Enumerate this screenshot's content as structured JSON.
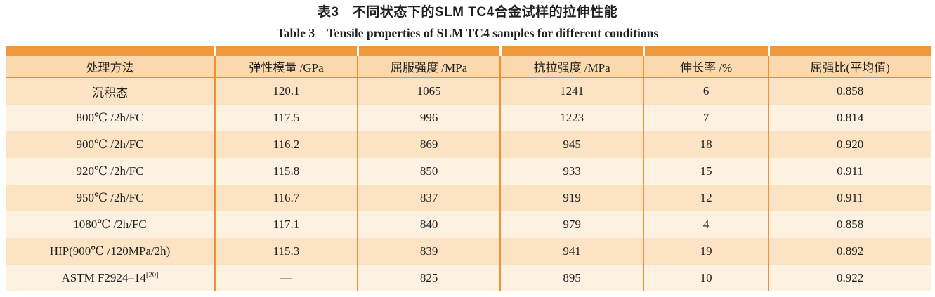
{
  "titles": {
    "chinese": "表3　不同状态下的SLM TC4合金试样的拉伸性能",
    "english": "Table 3　Tensile properties of SLM TC4 samples for different conditions"
  },
  "colors": {
    "accent_bar": "#F0993C",
    "column_separator": "#EF9235",
    "header_bg": "#FAD9AE",
    "header_underline": "#DC8E43",
    "row_odd_bg": "#FBE3C3",
    "row_even_bg": "#FDF1E1",
    "text": "#1F1F1F",
    "page_bg": "#FFFFFF"
  },
  "astm_label": {
    "base": "ASTM F2924–14",
    "sup": "[20]"
  },
  "chart_data": {
    "type": "table",
    "title": "表3 不同状态下的SLM TC4合金试样的拉伸性能 / Table 3 Tensile properties of SLM TC4 samples for different conditions",
    "columns": [
      "处理方法",
      "弹性模量 /GPa",
      "屈服强度 /MPa",
      "抗拉强度 /MPa",
      "伸长率 /%",
      "屈强比(平均值)"
    ],
    "rows": [
      [
        "沉积态",
        "120.1",
        "1065",
        "1241",
        "6",
        "0.858"
      ],
      [
        "800℃ /2h/FC",
        "117.5",
        "996",
        "1223",
        "7",
        "0.814"
      ],
      [
        "900℃ /2h/FC",
        "116.2",
        "869",
        "945",
        "18",
        "0.920"
      ],
      [
        "920℃ /2h/FC",
        "115.8",
        "850",
        "933",
        "15",
        "0.911"
      ],
      [
        "950℃ /2h/FC",
        "116.7",
        "837",
        "919",
        "12",
        "0.911"
      ],
      [
        "1080℃ /2h/FC",
        "117.1",
        "840",
        "979",
        "4",
        "0.858"
      ],
      [
        "HIP(900℃ /120MPa/2h)",
        "115.3",
        "839",
        "941",
        "19",
        "0.892"
      ],
      [
        "ASTM F2924–14[20]",
        "—",
        "825",
        "895",
        "10",
        "0.922"
      ]
    ]
  }
}
